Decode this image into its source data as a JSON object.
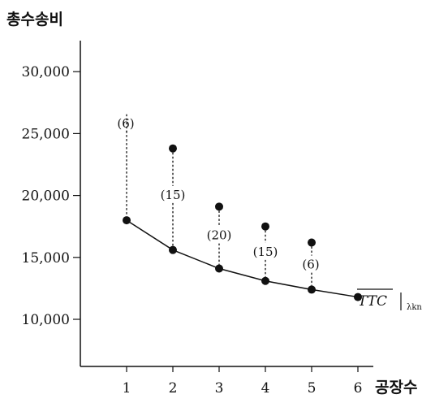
{
  "chart_data": {
    "type": "line",
    "ylabel": "총수송비",
    "xlabel": "공장수",
    "x": [
      1,
      2,
      3,
      4,
      5,
      6
    ],
    "xticks": [
      "1",
      "2",
      "3",
      "4",
      "5",
      "6"
    ],
    "yticks": [
      {
        "value": 10000,
        "label": "10,000"
      },
      {
        "value": 15000,
        "label": "15,000"
      },
      {
        "value": 20000,
        "label": "20,000"
      },
      {
        "value": 25000,
        "label": "25,000"
      },
      {
        "value": 30000,
        "label": "30,000"
      }
    ],
    "ylim": [
      7000,
      33500
    ],
    "xlim": [
      0,
      6.5
    ],
    "series": [
      {
        "name": "TTC",
        "label_main": "TTC",
        "label_sub": "λkn",
        "values": [
          18000,
          15600,
          14100,
          13100,
          12400,
          11800
        ]
      }
    ],
    "upper_points": [
      {
        "x": 1,
        "y": 26000,
        "label": "(6)",
        "marker": false
      },
      {
        "x": 2,
        "y": 23800,
        "label": "(15)",
        "marker": true
      },
      {
        "x": 3,
        "y": 19100,
        "label": "(20)",
        "marker": true
      },
      {
        "x": 4,
        "y": 17500,
        "label": "(15)",
        "marker": true
      },
      {
        "x": 5,
        "y": 16200,
        "label": "(6)",
        "marker": true
      }
    ],
    "colors": {
      "ink": "#111111",
      "background": "#ffffff"
    }
  }
}
